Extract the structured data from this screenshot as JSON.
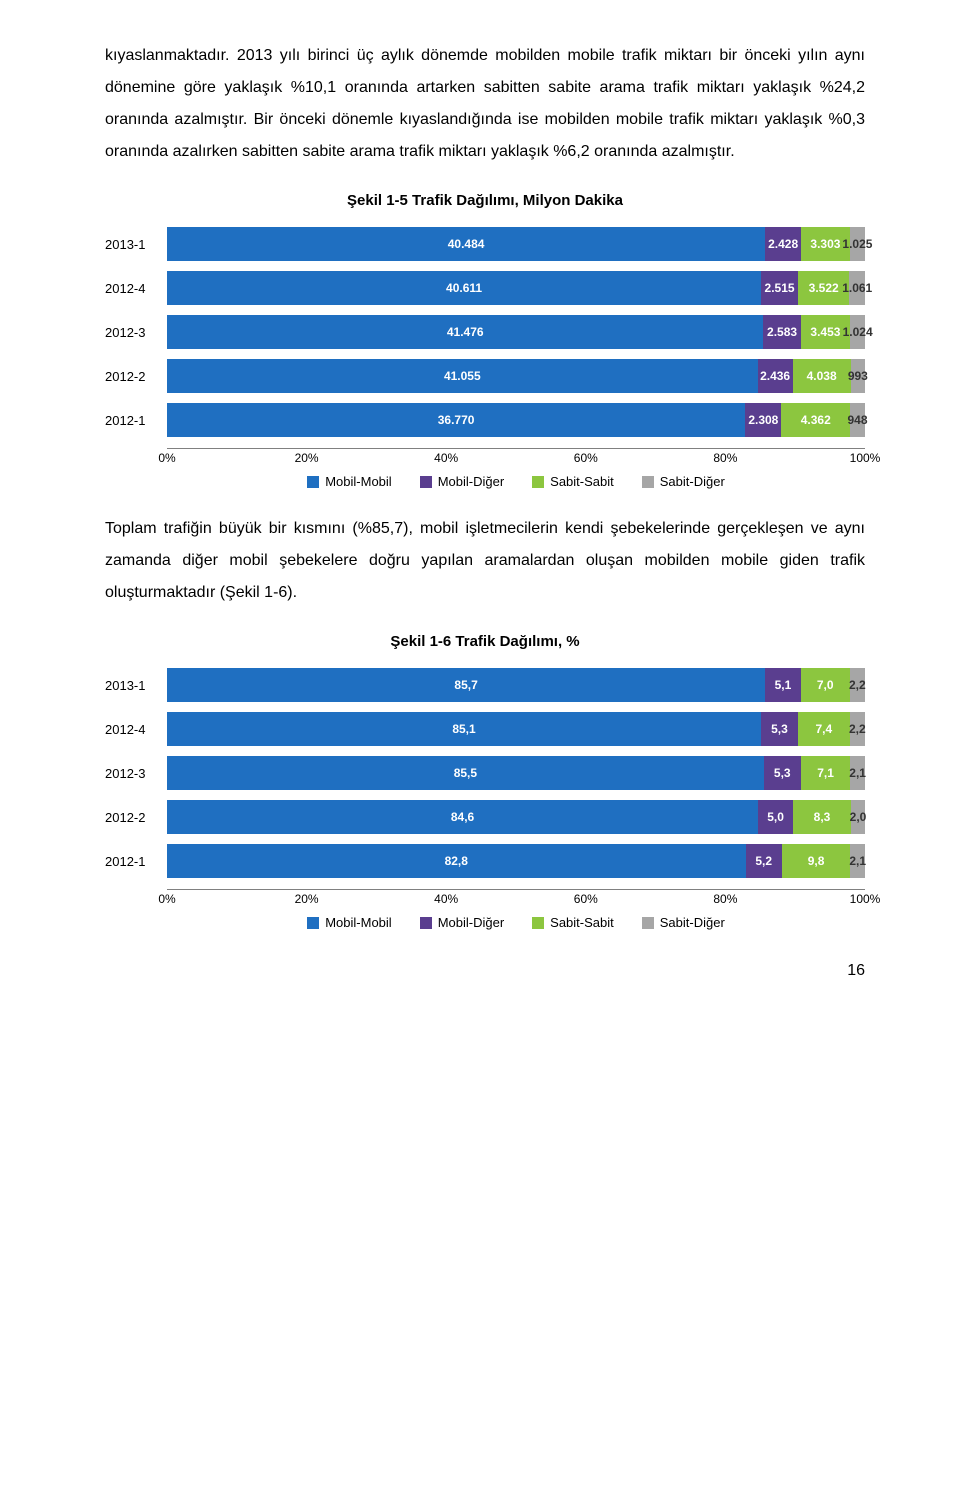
{
  "para1": "kıyaslanmaktadır. 2013 yılı birinci üç aylık dönemde mobilden mobile trafik miktarı bir önceki yılın aynı dönemine göre yaklaşık %10,1 oranında artarken sabitten sabite arama trafik miktarı yaklaşık %24,2 oranında azalmıştır. Bir önceki dönemle kıyaslandığında ise mobilden mobile trafik miktarı yaklaşık %0,3 oranında azalırken sabitten sabite arama trafik miktarı yaklaşık %6,2 oranında azalmıştır.",
  "chart1": {
    "title": "Şekil 1-5 Trafik Dağılımı, Milyon Dakika",
    "type": "stacked-bar-horizontal",
    "series_colors": [
      "#1f6fc1",
      "#5a3e8f",
      "#8cc63f",
      "#a6a6a6"
    ],
    "series_labels": [
      "Mobil-Mobil",
      "Mobil-Diğer",
      "Sabit-Sabit",
      "Sabit-Diğer"
    ],
    "axis_ticks": [
      "0%",
      "20%",
      "40%",
      "60%",
      "80%",
      "100%"
    ],
    "rows": [
      {
        "label": "2013-1",
        "values": [
          40484,
          2428,
          3303,
          1025
        ],
        "display": [
          "40.484",
          "2.428",
          "3.303",
          "1.025"
        ]
      },
      {
        "label": "2012-4",
        "values": [
          40611,
          2515,
          3522,
          1061
        ],
        "display": [
          "40.611",
          "2.515",
          "3.522",
          "1.061"
        ]
      },
      {
        "label": "2012-3",
        "values": [
          41476,
          2583,
          3453,
          1024
        ],
        "display": [
          "41.476",
          "2.583",
          "3.453",
          "1.024"
        ]
      },
      {
        "label": "2012-2",
        "values": [
          41055,
          2436,
          4038,
          993
        ],
        "display": [
          "41.055",
          "2.436",
          "4.038",
          "993"
        ]
      },
      {
        "label": "2012-1",
        "values": [
          36770,
          2308,
          4362,
          948
        ],
        "display": [
          "36.770",
          "2.308",
          "4.362",
          "948"
        ]
      }
    ]
  },
  "para2": "Toplam trafiğin büyük bir kısmını (%85,7), mobil işletmecilerin kendi şebekelerinde gerçekleşen ve aynı zamanda diğer mobil şebekelere doğru yapılan aramalardan oluşan mobilden mobile giden trafik oluşturmaktadır (Şekil 1-6).",
  "chart2": {
    "title": "Şekil 1-6 Trafik Dağılımı, %",
    "type": "stacked-bar-horizontal",
    "series_colors": [
      "#1f6fc1",
      "#5a3e8f",
      "#8cc63f",
      "#a6a6a6"
    ],
    "series_labels": [
      "Mobil-Mobil",
      "Mobil-Diğer",
      "Sabit-Sabit",
      "Sabit-Diğer"
    ],
    "axis_ticks": [
      "0%",
      "20%",
      "40%",
      "60%",
      "80%",
      "100%"
    ],
    "rows": [
      {
        "label": "2013-1",
        "values": [
          85.7,
          5.1,
          7.0,
          2.2
        ],
        "display": [
          "85,7",
          "5,1",
          "7,0",
          "2,2"
        ]
      },
      {
        "label": "2012-4",
        "values": [
          85.1,
          5.3,
          7.4,
          2.2
        ],
        "display": [
          "85,1",
          "5,3",
          "7,4",
          "2,2"
        ]
      },
      {
        "label": "2012-3",
        "values": [
          85.5,
          5.3,
          7.1,
          2.1
        ],
        "display": [
          "85,5",
          "5,3",
          "7,1",
          "2,1"
        ]
      },
      {
        "label": "2012-2",
        "values": [
          84.6,
          5.0,
          8.3,
          2.0
        ],
        "display": [
          "84,6",
          "5,0",
          "8,3",
          "2,0"
        ]
      },
      {
        "label": "2012-1",
        "values": [
          82.8,
          5.2,
          9.8,
          2.1
        ],
        "display": [
          "82,8",
          "5,2",
          "9,8",
          "2,1"
        ]
      }
    ]
  },
  "page_number": "16"
}
